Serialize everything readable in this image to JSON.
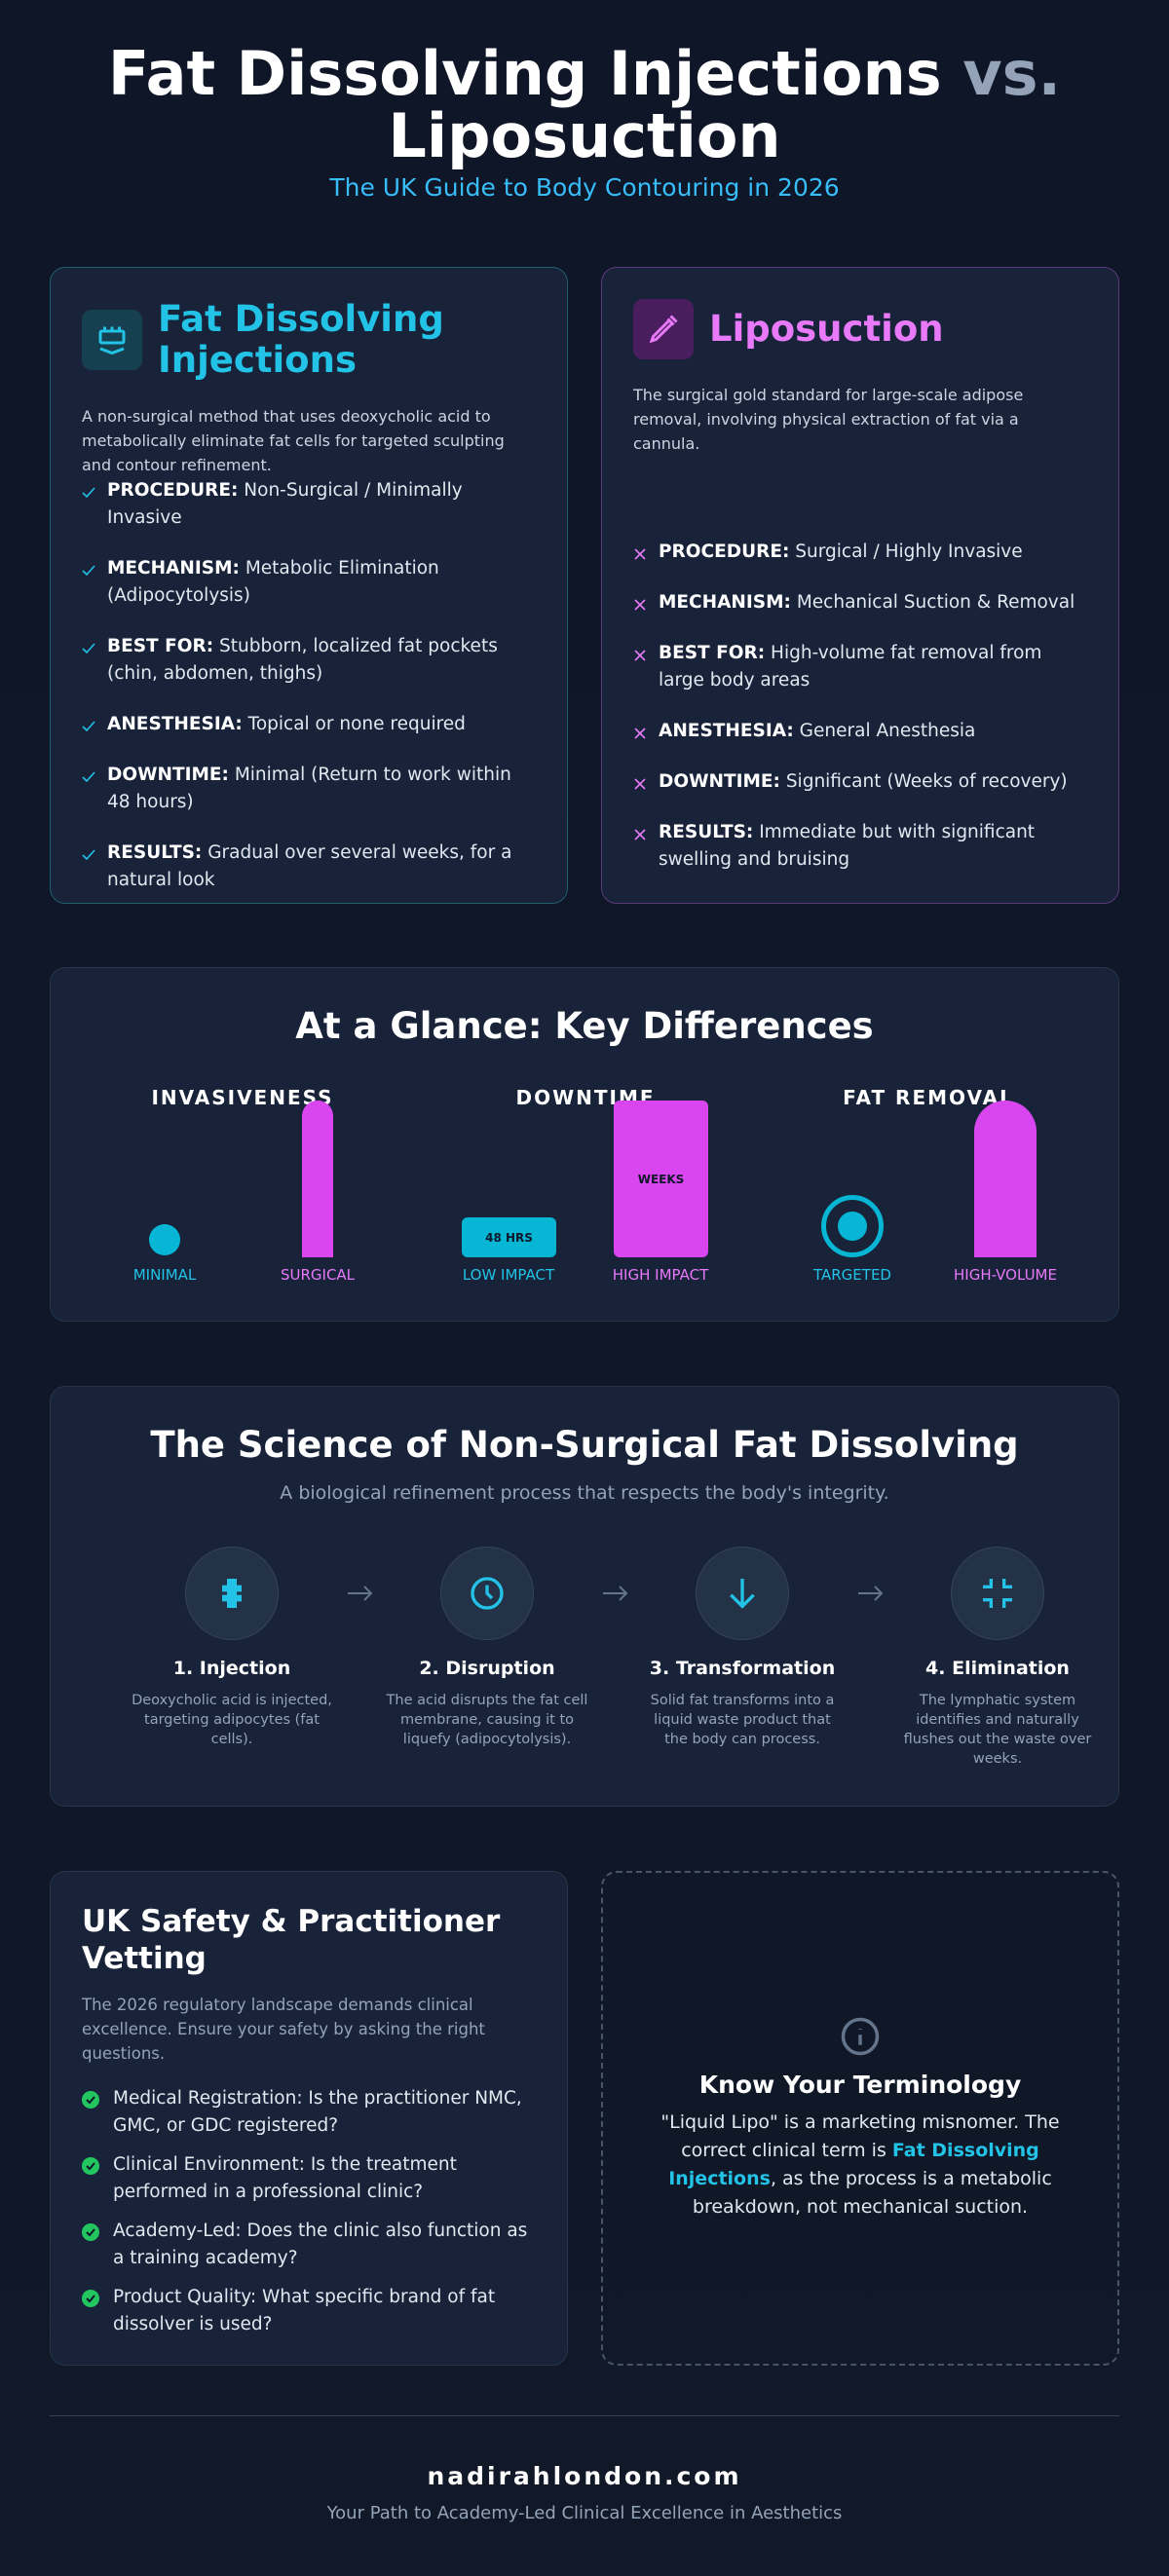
{
  "header": {
    "title_main": "Fat Dissolving Injections",
    "title_vs": "vs.",
    "title_end": "Liposuction",
    "subtitle": "The UK Guide to Body Contouring in 2026"
  },
  "comparison": {
    "cards": [
      {
        "title": "Fat Dissolving Injections",
        "description": "A non-surgical method that uses deoxycholic acid to metabolically eliminate fat cells for targeted sculpting and contour refinement.",
        "items": [
          {
            "label": "PROCEDURE:",
            "text": "Non-Surgical / Minimally Invasive"
          },
          {
            "label": "MECHANISM:",
            "text": "Metabolic Elimination (Adipocytolysis)"
          },
          {
            "label": "BEST FOR:",
            "text": "Stubborn, localized fat pockets (chin, abdomen, thighs)"
          },
          {
            "label": "ANESTHESIA:",
            "text": "Topical or none required"
          },
          {
            "label": "DOWNTIME:",
            "text": "Minimal (Return to work within 48 hours)"
          },
          {
            "label": "RESULTS:",
            "text": "Gradual over several weeks, for a natural look"
          }
        ]
      },
      {
        "title": "Liposuction",
        "description": "The surgical gold standard for large-scale adipose removal, involving physical extraction of fat via a cannula.",
        "items": [
          {
            "label": "PROCEDURE:",
            "text": "Surgical / Highly Invasive"
          },
          {
            "label": "MECHANISM:",
            "text": "Mechanical Suction & Removal"
          },
          {
            "label": "BEST FOR:",
            "text": "High-volume fat removal from large body areas"
          },
          {
            "label": "ANESTHESIA:",
            "text": "General Anesthesia"
          },
          {
            "label": "DOWNTIME:",
            "text": "Significant (Weeks of recovery)"
          },
          {
            "label": "RESULTS:",
            "text": "Immediate but with significant swelling and bruising"
          }
        ]
      }
    ]
  },
  "glance": {
    "title": "At a Glance: Key Differences",
    "groups": [
      {
        "heading": "INVASIVENESS",
        "low": "MINIMAL",
        "high": "SURGICAL"
      },
      {
        "heading": "DOWNTIME",
        "low": "LOW IMPACT",
        "high": "HIGH IMPACT",
        "low_badge": "48 HRS",
        "high_badge": "WEEKS"
      },
      {
        "heading": "FAT REMOVAL",
        "low": "TARGETED",
        "high": "HIGH-VOLUME"
      }
    ]
  },
  "science": {
    "title": "The Science of Non-Surgical Fat Dissolving",
    "subtitle": "A biological refinement process that respects the body's integrity.",
    "steps": [
      {
        "title": "1. Injection",
        "text": "Deoxycholic acid is injected, targeting adipocytes (fat cells)."
      },
      {
        "title": "2. Disruption",
        "text": "The acid disrupts the fat cell membrane, causing it to liquefy (adipocytolysis)."
      },
      {
        "title": "3. Transformation",
        "text": "Solid fat transforms into a liquid waste product that the body can process."
      },
      {
        "title": "4. Elimination",
        "text": "The lymphatic system identifies and naturally flushes out the waste over weeks."
      }
    ]
  },
  "safety": {
    "title": "UK Safety & Practitioner Vetting",
    "intro": "The 2026 regulatory landscape demands clinical excellence. Ensure your safety by asking the right questions.",
    "items": [
      "Medical Registration: Is the practitioner NMC, GMC, or GDC registered?",
      "Clinical Environment: Is the treatment performed in a professional clinic?",
      "Academy-Led: Does the clinic also function as a training academy?",
      "Product Quality: What specific brand of fat dissolver is used?"
    ]
  },
  "terminology": {
    "title": "Know Your Terminology",
    "text_before": "\"Liquid Lipo\" is a marketing misnomer. The correct clinical term is",
    "highlight": "Fat Dissolving Injections",
    "text_after": ", as the process is a metabolic breakdown, not mechanical suction."
  },
  "footer": {
    "site": "nadirahlondon.com",
    "tagline": "Your Path to Academy-Led Clinical Excellence in Aesthetics"
  }
}
